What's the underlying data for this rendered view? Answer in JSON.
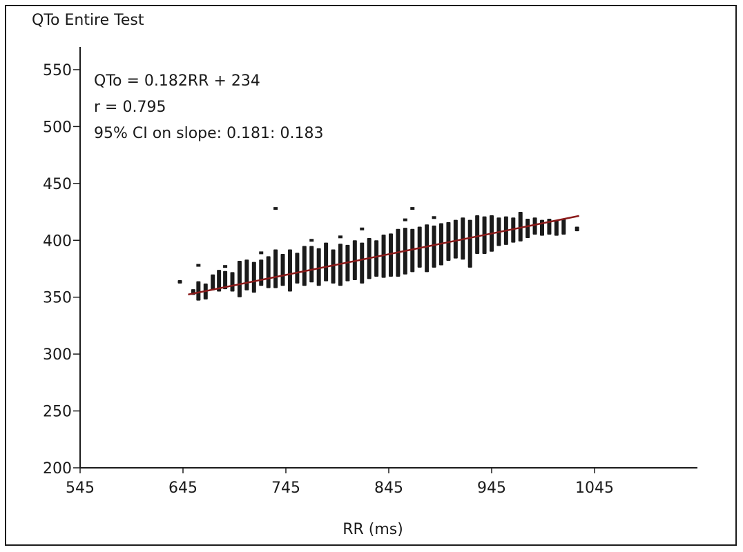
{
  "chart_data": {
    "type": "scatter",
    "title": "QTo Entire Test",
    "xlabel": "RR (ms)",
    "ylabel": "",
    "xlim": [
      545,
      1145
    ],
    "ylim": [
      200,
      570
    ],
    "xticks": [
      545,
      645,
      745,
      845,
      945,
      1045
    ],
    "yticks": [
      200,
      250,
      300,
      350,
      400,
      450,
      500,
      550
    ],
    "xtick_labels": [
      "545",
      "645",
      "745",
      "845",
      "945",
      "1045"
    ],
    "ytick_labels": [
      "200",
      "250",
      "300",
      "350",
      "400",
      "450",
      "500",
      "550"
    ],
    "annotations": [
      "QTo = 0.182RR + 234",
      "r = 0.795",
      "95% CI on slope: 0.181: 0.183"
    ],
    "regression": {
      "slope": 0.182,
      "intercept": 234,
      "x_range": [
        650,
        1030
      ]
    },
    "columns": [
      {
        "x": 642,
        "y_min": 362,
        "y_max": 365,
        "outliers": []
      },
      {
        "x": 655,
        "y_min": 352,
        "y_max": 357,
        "outliers": []
      },
      {
        "x": 660,
        "y_min": 347,
        "y_max": 364,
        "outliers": [
          378
        ]
      },
      {
        "x": 667,
        "y_min": 348,
        "y_max": 362,
        "outliers": []
      },
      {
        "x": 674,
        "y_min": 356,
        "y_max": 370,
        "outliers": []
      },
      {
        "x": 680,
        "y_min": 355,
        "y_max": 374,
        "outliers": []
      },
      {
        "x": 686,
        "y_min": 357,
        "y_max": 373,
        "outliers": [
          377
        ]
      },
      {
        "x": 693,
        "y_min": 355,
        "y_max": 372,
        "outliers": []
      },
      {
        "x": 700,
        "y_min": 350,
        "y_max": 382,
        "outliers": []
      },
      {
        "x": 707,
        "y_min": 356,
        "y_max": 383,
        "outliers": []
      },
      {
        "x": 714,
        "y_min": 354,
        "y_max": 381,
        "outliers": []
      },
      {
        "x": 721,
        "y_min": 360,
        "y_max": 383,
        "outliers": [
          389
        ]
      },
      {
        "x": 728,
        "y_min": 358,
        "y_max": 386,
        "outliers": []
      },
      {
        "x": 735,
        "y_min": 358,
        "y_max": 392,
        "outliers": [
          428
        ]
      },
      {
        "x": 742,
        "y_min": 360,
        "y_max": 388,
        "outliers": []
      },
      {
        "x": 749,
        "y_min": 355,
        "y_max": 392,
        "outliers": []
      },
      {
        "x": 756,
        "y_min": 362,
        "y_max": 389,
        "outliers": []
      },
      {
        "x": 763,
        "y_min": 360,
        "y_max": 395,
        "outliers": []
      },
      {
        "x": 770,
        "y_min": 363,
        "y_max": 395,
        "outliers": [
          400
        ]
      },
      {
        "x": 777,
        "y_min": 360,
        "y_max": 393,
        "outliers": []
      },
      {
        "x": 784,
        "y_min": 364,
        "y_max": 398,
        "outliers": []
      },
      {
        "x": 791,
        "y_min": 362,
        "y_max": 392,
        "outliers": []
      },
      {
        "x": 798,
        "y_min": 360,
        "y_max": 397,
        "outliers": [
          403
        ]
      },
      {
        "x": 805,
        "y_min": 364,
        "y_max": 396,
        "outliers": []
      },
      {
        "x": 812,
        "y_min": 365,
        "y_max": 400,
        "outliers": []
      },
      {
        "x": 819,
        "y_min": 362,
        "y_max": 398,
        "outliers": [
          410
        ]
      },
      {
        "x": 826,
        "y_min": 366,
        "y_max": 402,
        "outliers": []
      },
      {
        "x": 833,
        "y_min": 368,
        "y_max": 400,
        "outliers": []
      },
      {
        "x": 840,
        "y_min": 367,
        "y_max": 405,
        "outliers": []
      },
      {
        "x": 847,
        "y_min": 368,
        "y_max": 406,
        "outliers": []
      },
      {
        "x": 854,
        "y_min": 368,
        "y_max": 410,
        "outliers": []
      },
      {
        "x": 861,
        "y_min": 370,
        "y_max": 411,
        "outliers": [
          418
        ]
      },
      {
        "x": 868,
        "y_min": 372,
        "y_max": 410,
        "outliers": [
          428
        ]
      },
      {
        "x": 875,
        "y_min": 376,
        "y_max": 412,
        "outliers": []
      },
      {
        "x": 882,
        "y_min": 372,
        "y_max": 414,
        "outliers": []
      },
      {
        "x": 889,
        "y_min": 376,
        "y_max": 413,
        "outliers": [
          420
        ]
      },
      {
        "x": 896,
        "y_min": 378,
        "y_max": 415,
        "outliers": []
      },
      {
        "x": 903,
        "y_min": 382,
        "y_max": 416,
        "outliers": []
      },
      {
        "x": 910,
        "y_min": 384,
        "y_max": 418,
        "outliers": []
      },
      {
        "x": 917,
        "y_min": 383,
        "y_max": 420,
        "outliers": []
      },
      {
        "x": 924,
        "y_min": 376,
        "y_max": 418,
        "outliers": []
      },
      {
        "x": 931,
        "y_min": 388,
        "y_max": 422,
        "outliers": []
      },
      {
        "x": 938,
        "y_min": 388,
        "y_max": 421,
        "outliers": []
      },
      {
        "x": 945,
        "y_min": 390,
        "y_max": 422,
        "outliers": []
      },
      {
        "x": 952,
        "y_min": 395,
        "y_max": 420,
        "outliers": []
      },
      {
        "x": 959,
        "y_min": 396,
        "y_max": 421,
        "outliers": []
      },
      {
        "x": 966,
        "y_min": 398,
        "y_max": 420,
        "outliers": []
      },
      {
        "x": 973,
        "y_min": 399,
        "y_max": 425,
        "outliers": []
      },
      {
        "x": 980,
        "y_min": 402,
        "y_max": 419,
        "outliers": []
      },
      {
        "x": 987,
        "y_min": 405,
        "y_max": 420,
        "outliers": []
      },
      {
        "x": 994,
        "y_min": 404,
        "y_max": 418,
        "outliers": []
      },
      {
        "x": 1001,
        "y_min": 405,
        "y_max": 419,
        "outliers": []
      },
      {
        "x": 1008,
        "y_min": 404,
        "y_max": 418,
        "outliers": []
      },
      {
        "x": 1015,
        "y_min": 405,
        "y_max": 419,
        "outliers": []
      },
      {
        "x": 1028,
        "y_min": 408,
        "y_max": 412,
        "outliers": []
      }
    ],
    "colors": {
      "points": "#1a1a1a",
      "regression_line": "#8b1a1a",
      "axis": "#1a1a1a"
    },
    "grid": false,
    "legend": "none"
  }
}
